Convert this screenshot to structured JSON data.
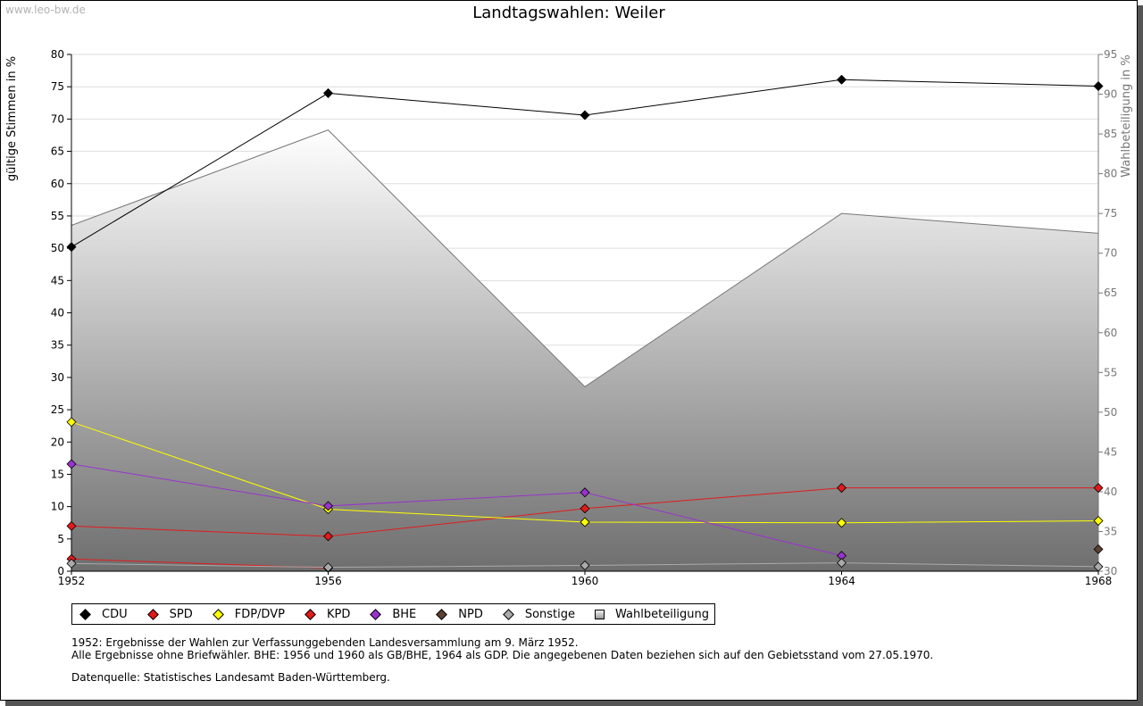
{
  "watermark": "www.leo-bw.de",
  "chart_data": {
    "type": "line",
    "title": "Landtagswahlen: Weiler",
    "ylabel": "gültige Stimmen in %",
    "y2label": "Wahlbeteiligung in %",
    "x": [
      "1952",
      "1956",
      "1960",
      "1964",
      "1968"
    ],
    "ylim": [
      0,
      80
    ],
    "y2lim": [
      30,
      95
    ],
    "yticks": [
      0,
      5,
      10,
      15,
      20,
      25,
      30,
      35,
      40,
      45,
      50,
      55,
      60,
      65,
      70,
      75,
      80
    ],
    "y2ticks": [
      30,
      35,
      40,
      45,
      50,
      55,
      60,
      65,
      70,
      75,
      80,
      85,
      90,
      95
    ],
    "grid": true,
    "series": [
      {
        "name": "CDU",
        "color": "#000000",
        "values": [
          50.2,
          74.0,
          70.6,
          76.1,
          75.1
        ]
      },
      {
        "name": "SPD",
        "color": "#e31a1c",
        "values": [
          7.0,
          5.4,
          9.7,
          12.9,
          12.9
        ]
      },
      {
        "name": "FDP/DVP",
        "color": "#ffff00",
        "values": [
          23.1,
          9.6,
          7.6,
          7.5,
          7.8
        ]
      },
      {
        "name": "KPD",
        "color": "#e31a1c",
        "values": [
          1.9,
          0.5,
          null,
          null,
          null
        ]
      },
      {
        "name": "BHE",
        "color": "#9933cc",
        "values": [
          16.6,
          10.1,
          12.2,
          2.4,
          null
        ]
      },
      {
        "name": "NPD",
        "color": "#5c4033",
        "values": [
          null,
          null,
          null,
          null,
          3.4
        ]
      },
      {
        "name": "Sonstige",
        "color": "#aaaaaa",
        "values": [
          1.2,
          0.6,
          0.9,
          1.3,
          0.7
        ]
      }
    ],
    "turnout": {
      "name": "Wahlbeteiligung",
      "values": [
        73.5,
        85.5,
        53.2,
        75.0,
        72.5
      ]
    }
  },
  "notes": [
    "1952: Ergebnisse der Wahlen zur Verfassunggebenden Landesversammlung am 9. März 1952.",
    "Alle Ergebnisse ohne Briefwähler. BHE: 1956 und 1960 als GB/BHE, 1964 als GDP. Die angegebenen Daten beziehen sich auf den Gebietsstand vom 27.05.1970."
  ],
  "source": "Datenquelle: Statistisches Landesamt Baden-Württemberg."
}
